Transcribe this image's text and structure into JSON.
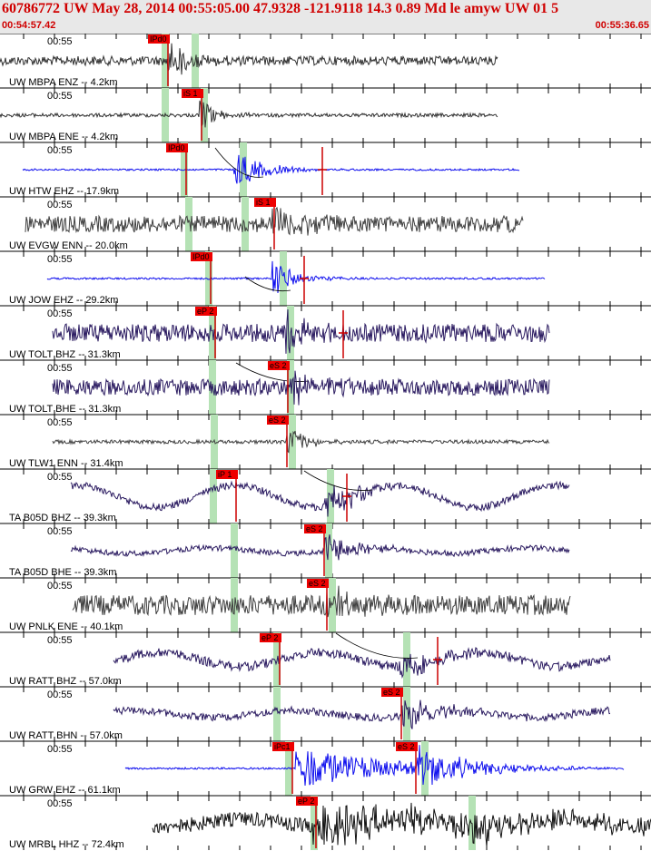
{
  "header": {
    "title": "60786772 UW May 28, 2014 00:55:05.00   47.9328 -121.9118 14.3 0.89 Md le amyw UW 01   5",
    "start_time": "00:54:57.42",
    "end_time": "00:55:36.65"
  },
  "colors": {
    "header_text": "#d00000",
    "pick_flag": "#ee0000",
    "pick_line": "#cc0000",
    "prediction_band": "#b5e2b5"
  },
  "traces": [
    {
      "id": "t1",
      "tick": "00:55",
      "label": "UW MBPA ENZ -- 4.2km",
      "color": "#303030",
      "start": 0,
      "end": 548,
      "onset": 185,
      "noise": 5,
      "peak": 24,
      "decay": 20,
      "wander": 0,
      "band": [
        182,
        215
      ],
      "picks": [
        {
          "label": "IPd0",
          "x": 185
        }
      ]
    },
    {
      "id": "t2",
      "tick": "00:55",
      "label": "UW MBPA ENE -- 4.2km",
      "color": "#303030",
      "start": 0,
      "end": 548,
      "onset": 220,
      "noise": 2,
      "peak": 18,
      "decay": 18,
      "wander": 0,
      "band": [
        182,
        225
      ],
      "picks": [
        {
          "label": "iS 1",
          "x": 222
        }
      ]
    },
    {
      "id": "t3",
      "tick": "00:55",
      "label": "UW HTW EHZ -- 17.9km",
      "color": "#1010ee",
      "start": 25,
      "end": 572,
      "onset": 258,
      "noise": 1,
      "peak": 24,
      "decay": 28,
      "wander": 0,
      "band": [
        203,
        268
      ],
      "picks": [
        {
          "label": "IPd0",
          "x": 205
        },
        {
          "label": "",
          "x": 355
        }
      ],
      "curve": [
        [
          237,
          163
        ],
        [
          290,
          195
        ]
      ]
    },
    {
      "id": "t4",
      "tick": "00:55",
      "label": "UW EVGW ENN -- 20.0km",
      "color": "#404040",
      "start": 28,
      "end": 576,
      "onset": 300,
      "noise": 9,
      "peak": 22,
      "decay": 30,
      "wander": 0,
      "band": [
        208,
        270
      ],
      "picks": [
        {
          "label": "iS 1",
          "x": 302
        }
      ]
    },
    {
      "id": "t5",
      "tick": "00:55",
      "label": "UW JOW EHZ -- 29.2km",
      "color": "#1010ee",
      "start": 52,
      "end": 600,
      "onset": 300,
      "noise": 1,
      "peak": 22,
      "decay": 25,
      "wander": 0,
      "band": [
        230,
        312
      ],
      "picks": [
        {
          "label": "IPd0",
          "x": 232
        },
        {
          "label": "",
          "x": 335
        }
      ],
      "curve": [
        [
          270,
          305
        ],
        [
          320,
          320
        ]
      ]
    },
    {
      "id": "t6",
      "tick": "00:55",
      "label": "UW TOLT BHZ -- 31.3km",
      "color": "#2a1a60",
      "start": 58,
      "end": 605,
      "onset": 315,
      "noise": 10,
      "peak": 25,
      "decay": 25,
      "wander": 0,
      "band": [
        234,
        320
      ],
      "picks": [
        {
          "label": "eP 2",
          "x": 237
        },
        {
          "label": "",
          "x": 378
        }
      ],
      "curve": [
        [
          260,
          400
        ],
        [
          340,
          420
        ]
      ]
    },
    {
      "id": "t7",
      "tick": "00:55",
      "label": "UW TOLT BHE -- 31.3km",
      "color": "#2a1a60",
      "start": 58,
      "end": 605,
      "onset": 317,
      "noise": 9,
      "peak": 24,
      "decay": 25,
      "wander": 0,
      "band": [
        234,
        320
      ],
      "picks": [
        {
          "label": "eS 2",
          "x": 317
        }
      ]
    },
    {
      "id": "t8",
      "tick": "00:55",
      "label": "UW TLW1 ENN -- 31.4km",
      "color": "#404040",
      "start": 58,
      "end": 605,
      "onset": 316,
      "noise": 2,
      "peak": 20,
      "decay": 20,
      "wander": 0,
      "band": [
        236,
        322
      ],
      "picks": [
        {
          "label": "eS 2",
          "x": 316
        }
      ]
    },
    {
      "id": "t9",
      "tick": "00:55",
      "label": "TA B05D BHZ -- 39.3km",
      "color": "#2a1a60",
      "start": 78,
      "end": 627,
      "onset": 358,
      "noise": 4,
      "peak": 24,
      "decay": 35,
      "wander": 12,
      "band": [
        235,
        364
      ],
      "picks": [
        {
          "label": "iP 1",
          "x": 260
        },
        {
          "label": "",
          "x": 382
        }
      ],
      "curve": [
        [
          335,
          519
        ],
        [
          410,
          540
        ]
      ]
    },
    {
      "id": "t10",
      "tick": "00:55",
      "label": "TA B05D BHE -- 39.3km",
      "color": "#2a1a60",
      "start": 78,
      "end": 627,
      "onset": 357,
      "noise": 3,
      "peak": 20,
      "decay": 35,
      "wander": 3,
      "band": [
        258,
        362
      ],
      "picks": [
        {
          "label": "eS 2",
          "x": 357
        }
      ]
    },
    {
      "id": "t11",
      "tick": "00:55",
      "label": "UW PNLK ENE -- 40.1km",
      "color": "#404040",
      "start": 80,
      "end": 628,
      "onset": 360,
      "noise": 11,
      "peak": 22,
      "decay": 25,
      "wander": 0,
      "band": [
        258,
        366
      ],
      "picks": [
        {
          "label": "eS 2",
          "x": 360
        }
      ]
    },
    {
      "id": "t12",
      "tick": "00:55",
      "label": "UW RATT BHZ -- 57.0km",
      "color": "#2a1a60",
      "start": 125,
      "end": 672,
      "onset": 440,
      "noise": 5,
      "peak": 20,
      "decay": 40,
      "wander": 8,
      "band": [
        305,
        448
      ],
      "picks": [
        {
          "label": "eP 2",
          "x": 308
        },
        {
          "label": "",
          "x": 482
        }
      ],
      "curve": [
        [
          370,
          698
        ],
        [
          460,
          725
        ]
      ]
    },
    {
      "id": "t13",
      "tick": "00:55",
      "label": "UW RATT BHN -- 57.0km",
      "color": "#2a1a60",
      "start": 125,
      "end": 672,
      "onset": 442,
      "noise": 4,
      "peak": 22,
      "decay": 40,
      "wander": 4,
      "band": [
        305,
        448
      ],
      "picks": [
        {
          "label": "eS 2",
          "x": 442
        }
      ]
    },
    {
      "id": "t14",
      "tick": "00:55",
      "label": "UW GRW EHZ -- 61.1km",
      "color": "#1010ee",
      "start": 138,
      "end": 687,
      "onset": 326,
      "noise": 1,
      "peak": 24,
      "decay": 100,
      "wander": 0,
      "band": [
        318,
        468
      ],
      "picks": [
        {
          "label": "iPc1",
          "x": 322
        },
        {
          "label": "eS 2",
          "x": 458
        }
      ],
      "second_onset": 460
    },
    {
      "id": "t15",
      "tick": "00:55",
      "label": "UW MRBL HHZ -- 72.4km",
      "color": "#111111",
      "start": 168,
      "end": 717,
      "onset": 345,
      "noise": 8,
      "peak": 20,
      "decay": 200,
      "wander": 4,
      "band": [
        346,
        520
      ],
      "picks": [
        {
          "label": "eP 2",
          "x": 348
        }
      ],
      "second_onset": 520
    }
  ]
}
